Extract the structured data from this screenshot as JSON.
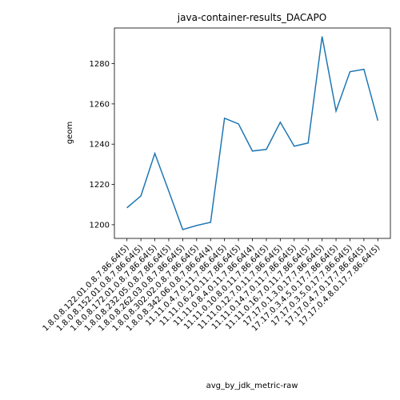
{
  "chart_data": {
    "type": "line",
    "title": "java-container-results_DACAPO",
    "xlabel": "avg_by_jdk_metric-raw",
    "ylabel": "geom",
    "categories": [
      "1.8.0.8.122.01.0.8.7.86.64(5)",
      "1.8.0.8.152.01.0.8.7.86.64(5)",
      "1.8.0.8.172.01.0.8.7.86.64(5)",
      "1.8.0.8.232.05.0.8.7.86.64(5)",
      "1.8.0.8.262.03.0.8.7.86.64(5)",
      "1.8.0.8.302.02.0.8.7.86.64(5)",
      "1.8.0.8.342.06.0.8.7.86.64(4)",
      "11.11.0.4.7.0.11.7.86.64(5)",
      "11.11.0.6.2.0.11.7.86.64(5)",
      "11.11.0.8.4.0.11.7.86.64(4)",
      "11.11.0.10.8.0.11.7.86.64(5)",
      "11.11.0.12.7.0.11.7.86.64(5)",
      "11.11.0.14.7.0.11.7.86.64(5)",
      "11.11.0.16.7.0.11.7.86.64(5)",
      "17.17.0.1.3.0.17.7.86.64(5)",
      "17.17.0.3.4.5.0.17.7.86.64(5)",
      "17.17.0.3.5.0.17.7.86.64(5)",
      "17.17.0.4.7.0.17.7.86.64(5)",
      "17.17.0.4.8.0.17.7.86.64(5)"
    ],
    "values": [
      1208.4,
      1214.3,
      1235.4,
      1216.7,
      1197.6,
      1199.6,
      1201.2,
      1252.9,
      1250.1,
      1236.6,
      1237.4,
      1250.9,
      1239.0,
      1240.6,
      1293.5,
      1256.5,
      1276.0,
      1277.2,
      1251.7
    ],
    "color": "#1f77b4",
    "ylim": [
      1193.2,
      1297.7
    ],
    "yticks": [
      1200,
      1220,
      1240,
      1260,
      1280
    ]
  }
}
